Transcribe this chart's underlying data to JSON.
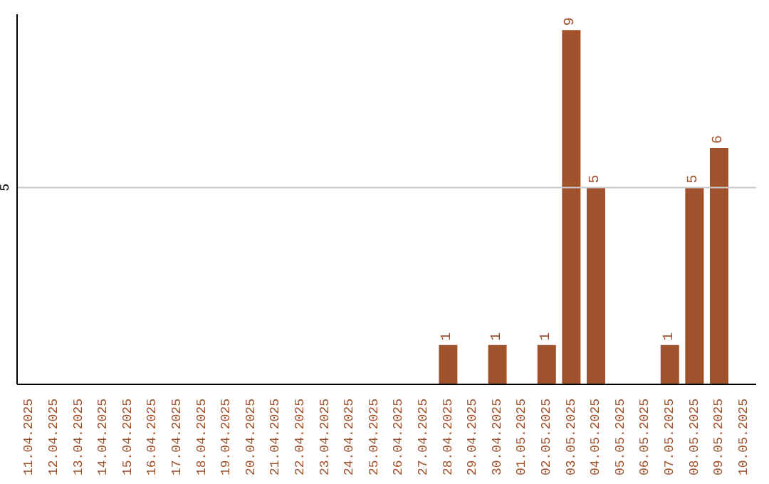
{
  "chart_data": {
    "type": "bar",
    "categories": [
      "11.04.2025",
      "12.04.2025",
      "13.04.2025",
      "14.04.2025",
      "15.04.2025",
      "16.04.2025",
      "17.04.2025",
      "18.04.2025",
      "19.04.2025",
      "20.04.2025",
      "21.04.2025",
      "22.04.2025",
      "23.04.2025",
      "24.04.2025",
      "25.04.2025",
      "26.04.2025",
      "27.04.2025",
      "28.04.2025",
      "29.04.2025",
      "30.04.2025",
      "01.05.2025",
      "02.05.2025",
      "03.05.2025",
      "04.05.2025",
      "05.05.2025",
      "06.05.2025",
      "07.05.2025",
      "08.05.2025",
      "09.05.2025",
      "10.05.2025"
    ],
    "values": [
      null,
      null,
      null,
      null,
      null,
      null,
      null,
      null,
      null,
      null,
      null,
      null,
      null,
      null,
      null,
      null,
      null,
      1,
      null,
      1,
      null,
      1,
      9,
      5,
      null,
      null,
      1,
      5,
      6,
      null
    ],
    "data_labels": true,
    "color": "#a0522d",
    "ylim": [
      0,
      9.4
    ],
    "yticks": [
      5
    ],
    "grid": "y"
  }
}
